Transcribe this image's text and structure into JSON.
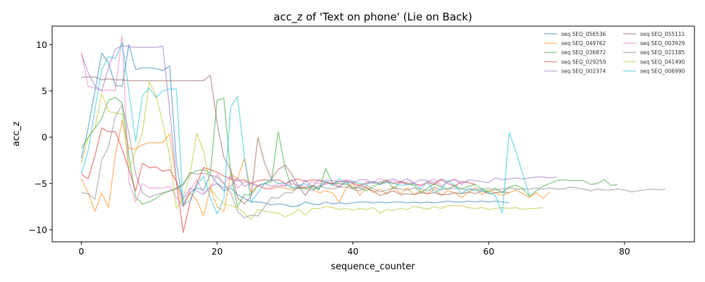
{
  "chart_data": {
    "type": "line",
    "title": "acc_z of 'Text on phone' (Lie on Back)",
    "xlabel": "sequence_counter",
    "ylabel": "acc_z",
    "xlim": [
      -4.3,
      90.3
    ],
    "ylim": [
      -11.3,
      12.0
    ],
    "xticks": [
      0,
      20,
      40,
      60,
      80
    ],
    "yticks": [
      -10,
      -5,
      0,
      5,
      10
    ],
    "grid": false,
    "legend": {
      "placement": "top-right",
      "columns": 2
    },
    "series": [
      {
        "name": "seq SEQ_056536",
        "color": "#1f77b4",
        "y": [
          -2.3,
          1.0,
          5.0,
          9.1,
          8.0,
          5.6,
          5.5,
          10.0,
          7.3,
          7.5,
          7.5,
          7.4,
          7.2,
          7.7,
          -2.8,
          -7.2,
          -6.0,
          -5.5,
          -5.7,
          -4.0,
          -5.0,
          -5.8,
          -5.5,
          -6.2,
          -6.6,
          -7.0,
          -7.0,
          -7.1,
          -7.3,
          -7.2,
          -7.3,
          -7.5,
          -7.4,
          -7.0,
          -7.2,
          -7.3,
          -7.0,
          -7.2,
          -7.1,
          -7.2,
          -7.1,
          -7.0,
          -7.0,
          -7.1,
          -7.0,
          -7.1,
          -7.0,
          -7.0,
          -7.1,
          -7.0,
          -7.1,
          -7.0,
          -7.1,
          -7.0,
          -6.9,
          -7.0,
          -7.0,
          -6.9,
          -7.0,
          -6.9,
          -7.0,
          -6.9,
          -7.0,
          -7.1
        ]
      },
      {
        "name": "seq SEQ_049762",
        "color": "#ff7f0e",
        "y": [
          -4.5,
          -6.0,
          -8.0,
          -6.0,
          -7.6,
          -2.0,
          1.8,
          -1.2,
          -1.3,
          -0.8,
          -0.6,
          -0.6,
          -0.6,
          0.4,
          -4.8,
          -7.5,
          -6.0,
          -6.8,
          -8.5,
          -5.5,
          -7.5,
          -8.0,
          -4.0,
          -4.5,
          -2.3,
          -6.0,
          -5.2,
          -5.5,
          -5.6,
          -5.4,
          -5.5,
          -5.7,
          -5.5,
          -5.4,
          -5.5,
          -6.0,
          -5.8,
          -6.0,
          -7.0,
          -5.5,
          -5.0,
          -6.3,
          -5.4,
          -6.0,
          -5.6,
          -6.2,
          -5.3,
          -6.1,
          -5.5,
          -6.2,
          -5.8,
          -6.1,
          -5.6,
          -6.3,
          -5.8,
          -6.0,
          -6.5,
          -6.0,
          -5.5,
          -6.2,
          -5.7,
          -6.0,
          -6.3,
          -6.0,
          -5.7,
          -6.1,
          -6.5,
          -6.0,
          -6.6,
          -5.9
        ]
      },
      {
        "name": "seq SEQ_036872",
        "color": "#2ca02c",
        "y": [
          -1.2,
          0.0,
          1.0,
          2.0,
          4.0,
          4.3,
          3.7,
          -2.0,
          -6.5,
          -7.2,
          -7.0,
          -6.6,
          -6.1,
          -5.8,
          -5.6,
          -5.0,
          -4.0,
          -3.6,
          -3.5,
          -3.9,
          4.0,
          4.2,
          -4.0,
          -7.5,
          -6.2,
          -6.2,
          -5.2,
          -5.0,
          -4.8,
          0.6,
          -3.3,
          -5.5,
          -5.5,
          -5.6,
          -5.2,
          -5.7,
          -3.4,
          -5.0,
          -5.0,
          -5.1,
          -5.4,
          -5.5,
          -5.8,
          -5.3,
          -5.0,
          -4.6,
          -5.6,
          -4.8,
          -5.0,
          -5.2,
          -6.0,
          -5.5,
          -5.0,
          -5.4,
          -5.6,
          -5.2,
          -5.6,
          -5.3,
          -5.1,
          -5.6,
          -5.9,
          -5.5,
          -6.0,
          -5.4,
          -5.2,
          -5.5,
          -6.4,
          -5.8,
          -5.3,
          -5.0,
          -4.7,
          -4.6,
          -4.7,
          -4.7,
          -4.7,
          -5.1,
          -5.0,
          -4.6,
          -5.2,
          -5.1
        ]
      },
      {
        "name": "seq SEQ_029259",
        "color": "#d62728",
        "y": [
          -4.0,
          -4.5,
          -2.0,
          1.0,
          0.6,
          0.6,
          -1.3,
          -3.5,
          -5.8,
          -2.8,
          -3.3,
          -3.2,
          -3.7,
          -3.5,
          -4.8,
          -10.3,
          -7.0,
          -5.0,
          -3.3,
          -3.5,
          -3.8,
          -4.2,
          -4.5,
          -4.7,
          -4.6,
          -5.0,
          -4.7,
          -4.6,
          -4.7,
          -4.6,
          -5.0,
          -4.7,
          -4.5,
          -4.8,
          -4.6,
          -4.7,
          -4.9,
          -5.0,
          -4.8,
          -4.7,
          -5.0,
          -5.2,
          -5.0,
          -4.8,
          -5.1,
          -4.7,
          -5.0,
          -4.8,
          -5.1,
          -5.0,
          -5.2,
          -4.9,
          -5.1,
          -4.6,
          -5.0,
          -5.3,
          -4.8,
          -4.9,
          -5.1
        ]
      },
      {
        "name": "seq SEQ_002374",
        "color": "#9467bd",
        "y": [
          9.0,
          7.0,
          5.5,
          5.0,
          7.5,
          9.5,
          9.9,
          9.8,
          9.7,
          9.7,
          9.7,
          9.7,
          9.8,
          3.0,
          -4.8,
          -6.7,
          -5.5,
          -5.8,
          -6.2,
          -5.3,
          -5.0,
          -5.5,
          -5.3,
          -4.4,
          -5.3,
          -5.0,
          -5.3,
          -5.0,
          -5.3,
          -5.3,
          -5.2,
          -4.6,
          -5.6,
          -4.6,
          -5.4,
          -4.6,
          -4.7,
          -4.7,
          -4.8,
          -4.7,
          -4.9,
          -4.6,
          -4.6,
          -5.0,
          -4.8,
          -4.7,
          -4.5,
          -4.8,
          -4.5,
          -4.9,
          -4.6,
          -4.7,
          -4.9,
          -4.5,
          -4.8,
          -4.6,
          -5.1,
          -4.6,
          -4.7,
          -4.8,
          -4.9,
          -4.4,
          -4.6,
          -4.5,
          -4.4,
          -4.5,
          -4.4,
          -4.3,
          -4.3,
          -4.4,
          -4.3
        ]
      },
      {
        "name": "seq SEQ_055111",
        "color": "#8c564b",
        "y": [
          6.5,
          6.5,
          6.5,
          6.2,
          6.3,
          6.2,
          6.2,
          6.1,
          6.1,
          6.1,
          6.1,
          6.1,
          6.1,
          6.1,
          6.1,
          6.1,
          6.1,
          6.1,
          6.1,
          6.7,
          1.5,
          -2.2,
          -3.5,
          -6.5,
          -7.2,
          -6.4,
          0.0,
          -2.8,
          -4.5,
          -3.5,
          -3.0,
          -4.0,
          -5.3,
          -6.3,
          -5.2,
          -5.5,
          -4.9,
          -5.1,
          -5.4,
          -4.8,
          -5.6,
          -5.2,
          -5.5,
          -5.8,
          -6.3,
          -6.0,
          -5.8,
          -6.2,
          -6.1,
          -6.2,
          -6.0,
          -6.1,
          -6.0,
          -6.2,
          -6.2,
          -6.0,
          -6.1,
          -5.9,
          -6.1,
          -5.8,
          -6.1,
          -6.0,
          -5.9,
          -6.0
        ]
      },
      {
        "name": "seq SEQ_003929",
        "color": "#e377c2",
        "y": [
          9.2,
          5.5,
          5.3,
          5.0,
          5.1,
          5.0,
          11.0,
          -4.8,
          -7.0,
          -5.0,
          -5.5,
          -5.5,
          -5.5,
          -5.3,
          -6.5,
          -7.5,
          -5.7,
          -4.6,
          -6.0,
          -5.5,
          -4.0,
          -5.0,
          -4.2,
          -5.5,
          -4.8,
          -5.0,
          -5.2,
          -5.6,
          -5.5,
          -5.0,
          -5.3,
          -5.0,
          -5.2,
          -5.4,
          -4.8,
          -5.0,
          -5.1,
          -4.9,
          -5.3,
          -4.6,
          -4.7,
          -5.5,
          -4.8,
          -4.9,
          -4.4,
          -4.9,
          -4.7,
          -5.0,
          -4.8,
          -5.0,
          -5.3,
          -4.8,
          -4.5,
          -5.3,
          -4.8,
          -4.5,
          -4.9,
          -4.8
        ]
      },
      {
        "name": "seq SEQ_021185",
        "color": "#7f7f7f",
        "y": [
          -6.0,
          -6.1,
          -6.7,
          -2.5,
          -1.0,
          2.2,
          3.5,
          0.5,
          -4.0,
          -6.0,
          -6.5,
          -6.2,
          -6.0,
          -5.8,
          -5.5,
          -5.2,
          -3.8,
          -4.0,
          -3.9,
          -4.1,
          -4.3,
          -5.0,
          -6.0,
          -8.0,
          -8.7,
          -8.4,
          -8.5,
          -7.5,
          -6.5,
          -6.6,
          -6.0,
          -6.0,
          -5.3,
          -5.5,
          -5.8,
          -5.2,
          -5.5,
          -5.6,
          -5.4,
          -5.4,
          -5.6,
          -5.8,
          -5.2,
          -5.6,
          -5.9,
          -5.7,
          -5.5,
          -5.6,
          -5.7,
          -5.5,
          -5.6,
          -5.8,
          -5.4,
          -5.7,
          -5.6,
          -5.5,
          -5.6,
          -5.7,
          -5.6,
          -5.6,
          -5.5,
          -5.7,
          -5.6,
          -5.5,
          -5.6,
          -5.6,
          -5.6,
          -5.5,
          -5.6,
          -5.5,
          -5.6,
          -5.6,
          -5.4,
          -5.5,
          -5.6,
          -5.8,
          -5.6,
          -5.7,
          -5.7,
          -5.6,
          -5.7,
          -5.9,
          -5.8,
          -5.7,
          -5.6,
          -5.7,
          -5.6
        ]
      },
      {
        "name": "seq SEQ_041490",
        "color": "#bcbd22",
        "y": [
          -2.8,
          0.0,
          1.0,
          4.7,
          2.8,
          2.6,
          2.5,
          -3.5,
          -1.5,
          0.5,
          6.0,
          4.5,
          1.5,
          -2.0,
          -7.7,
          -6.5,
          -4.0,
          0.4,
          -1.5,
          -5.5,
          -6.5,
          -7.2,
          -7.4,
          -7.6,
          -8.2,
          -8.9,
          -7.8,
          -8.0,
          -8.1,
          -8.2,
          -8.6,
          -8.3,
          -7.8,
          -8.4,
          -7.7,
          -7.7,
          -7.5,
          -7.6,
          -7.8,
          -7.7,
          -7.9,
          -7.7,
          -7.8,
          -7.6,
          -8.2,
          -7.8,
          -7.9,
          -7.7,
          -7.8,
          -7.5,
          -7.6,
          -7.8,
          -7.5,
          -7.7,
          -7.4,
          -7.4,
          -7.4,
          -7.6,
          -7.7,
          -7.6,
          -7.8,
          -7.7,
          -7.6,
          -7.7,
          -7.6,
          -7.8,
          -7.7,
          -7.7,
          -7.6
        ]
      },
      {
        "name": "seq SEQ_006990",
        "color": "#17becf",
        "y": [
          -4.0,
          -1.5,
          3.0,
          7.3,
          8.7,
          8.5,
          10.2,
          5.0,
          -0.5,
          4.5,
          5.3,
          4.3,
          5.0,
          5.2,
          5.2,
          -7.4,
          -6.8,
          -5.2,
          -4.2,
          -6.5,
          -8.3,
          -6.6,
          3.3,
          4.4,
          -2.0,
          -7.0,
          -6.0,
          -5.0,
          -4.5,
          -5.0,
          -5.0,
          -5.5,
          -5.2,
          -5.0,
          -5.6,
          -5.5,
          -4.7,
          -5.2,
          -4.5,
          -5.0,
          -4.8,
          -5.0,
          -5.1,
          -4.8,
          -5.1,
          -4.9,
          -5.0,
          -5.2,
          -5.1,
          -5.0,
          -5.6,
          -4.8,
          -6.0,
          -5.6,
          -4.7,
          -5.2,
          -6.1,
          -5.5,
          -5.8,
          -5.7,
          -6.0,
          -6.3,
          -8.2,
          0.5,
          -1.5,
          -4.0,
          -6.3
        ]
      }
    ]
  }
}
